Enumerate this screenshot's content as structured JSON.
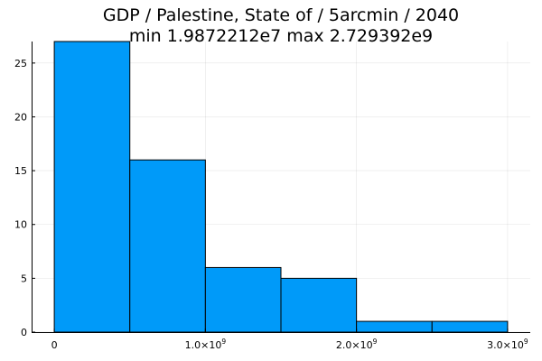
{
  "chart_data": {
    "type": "histogram",
    "title": [
      "GDP / Palestine, State of / 5arcmin / 2040",
      "min 1.9872212e7  max 2.729392e9"
    ],
    "xlabel": "",
    "ylabel": "",
    "xlim": [
      -150000000.0,
      3150000000.0
    ],
    "ylim": [
      0,
      27
    ],
    "grid": true,
    "legend": "none",
    "bar_color": "#009af9",
    "bins": [
      {
        "x0": 0,
        "x1": 500000000.0,
        "count": 27
      },
      {
        "x0": 500000000.0,
        "x1": 1000000000.0,
        "count": 16
      },
      {
        "x0": 1000000000.0,
        "x1": 1500000000.0,
        "count": 6
      },
      {
        "x0": 1500000000.0,
        "x1": 2000000000.0,
        "count": 5
      },
      {
        "x0": 2000000000.0,
        "x1": 2500000000.0,
        "count": 1
      },
      {
        "x0": 2500000000.0,
        "x1": 3000000000.0,
        "count": 1
      }
    ],
    "x_ticks": [
      {
        "value": 0,
        "mantissa": "0",
        "exp": ""
      },
      {
        "value": 1000000000.0,
        "mantissa": "1.0×10",
        "exp": "9"
      },
      {
        "value": 2000000000.0,
        "mantissa": "2.0×10",
        "exp": "9"
      },
      {
        "value": 3000000000.0,
        "mantissa": "3.0×10",
        "exp": "9"
      }
    ],
    "y_ticks": [
      {
        "value": 0,
        "label": "0"
      },
      {
        "value": 5,
        "label": "5"
      },
      {
        "value": 10,
        "label": "10"
      },
      {
        "value": 15,
        "label": "15"
      },
      {
        "value": 20,
        "label": "20"
      },
      {
        "value": 25,
        "label": "25"
      }
    ]
  }
}
